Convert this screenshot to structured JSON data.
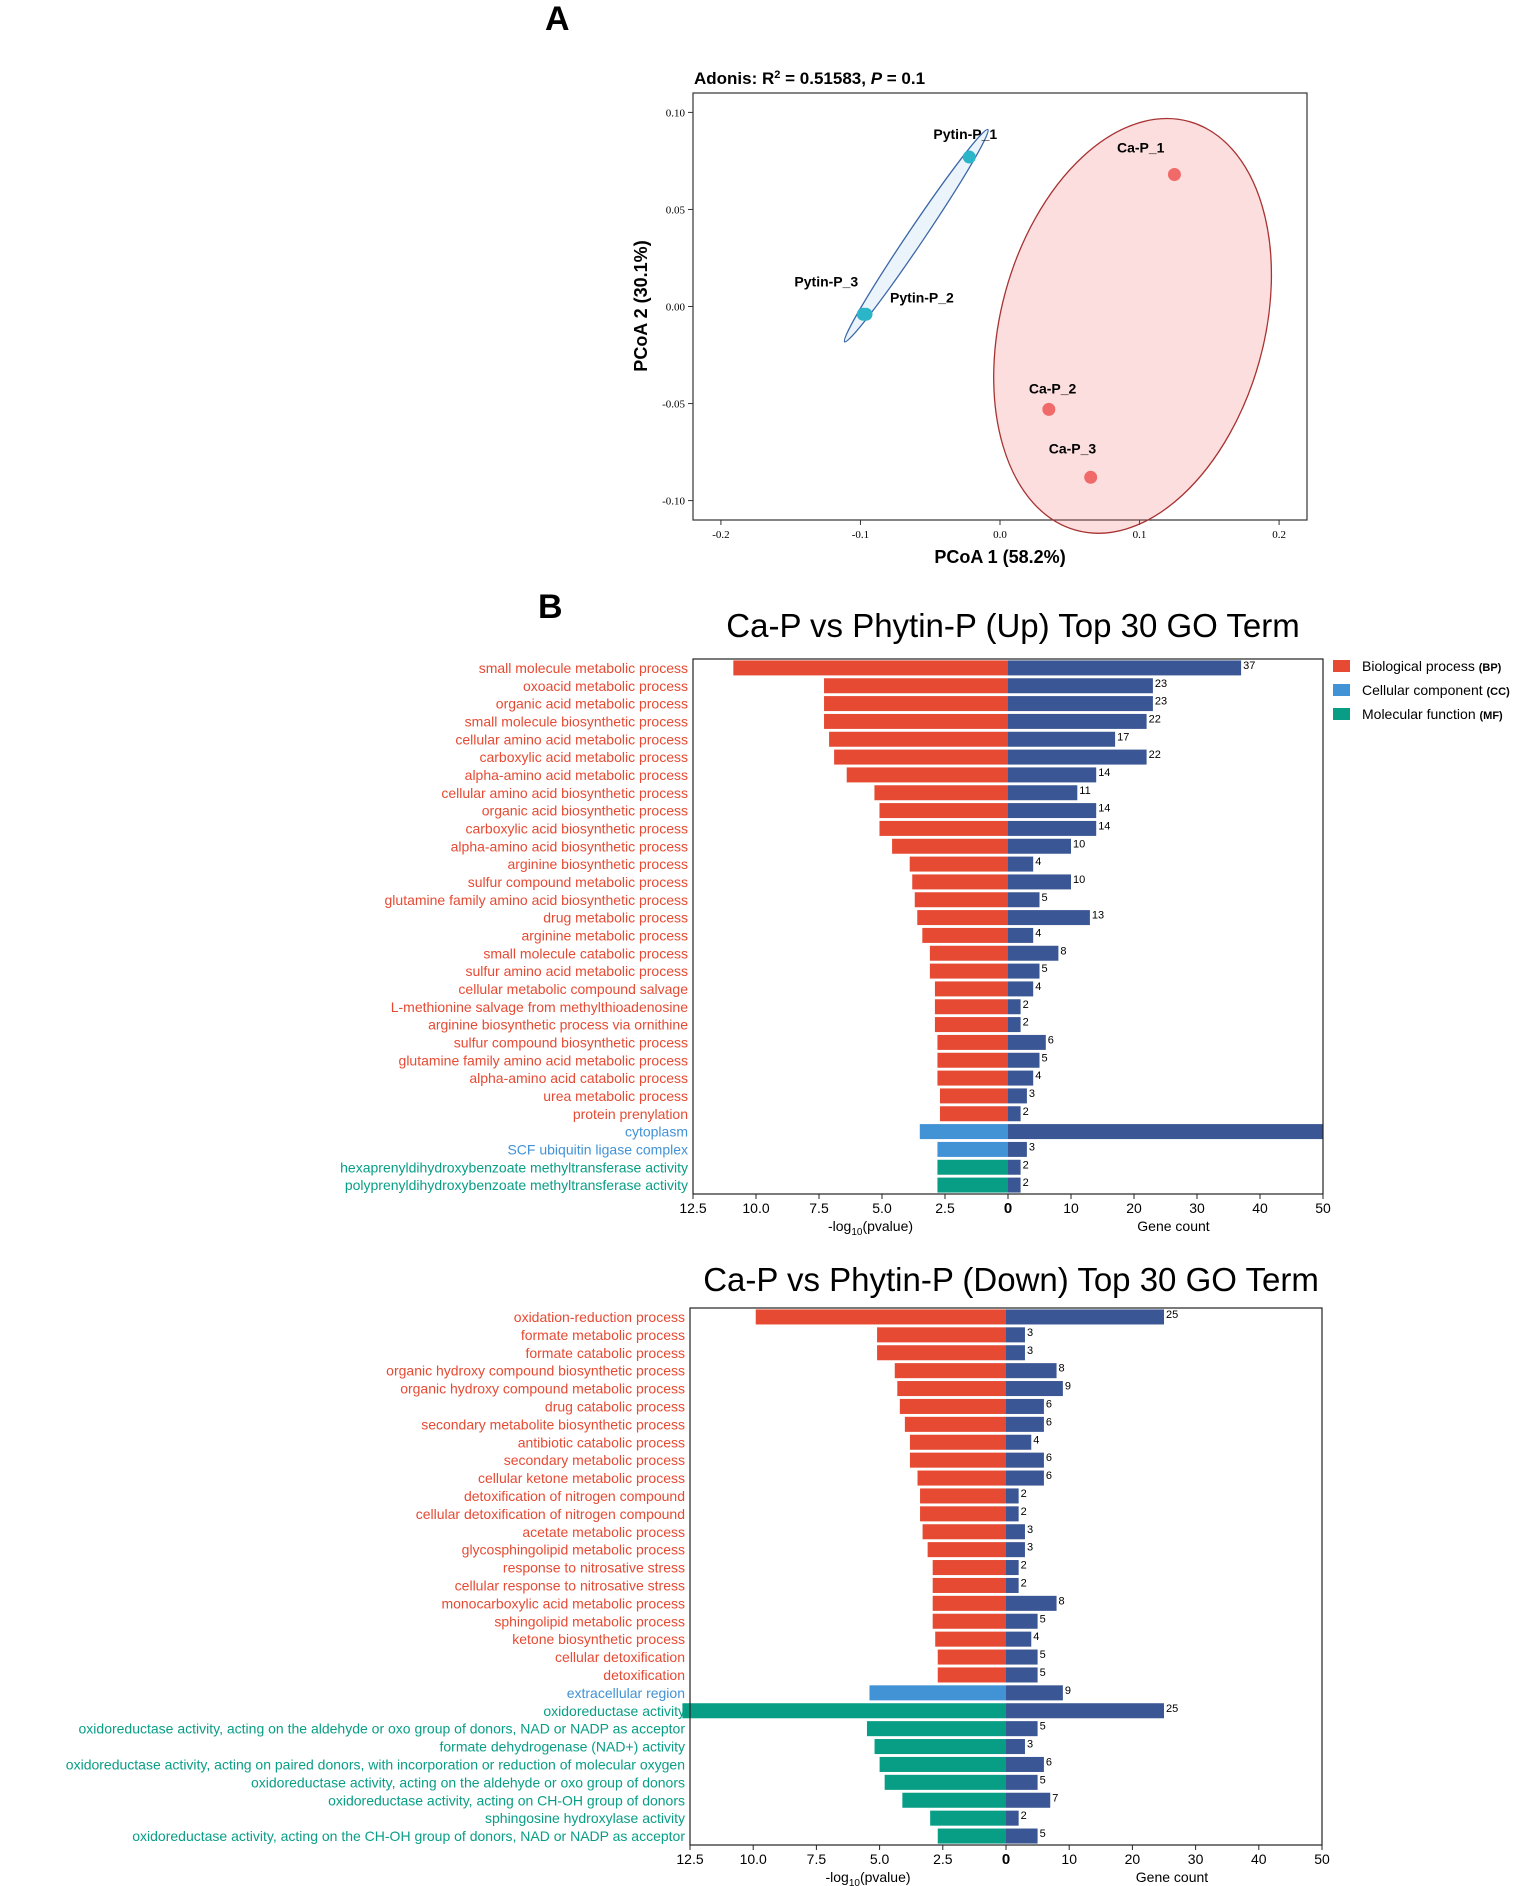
{
  "panel_a": {
    "panel_letter": "A",
    "chart_data": {
      "type": "scatter",
      "title_prefix": "Adonis: R",
      "title_sup": "2",
      "title_mid": " = 0.51583, ",
      "title_p": "P",
      "title_suffix": " = 0.1",
      "xlabel": "PCoA 1 (58.2%)",
      "ylabel": "PCoA 2 (30.1%)",
      "xlim": [
        -0.22,
        0.22
      ],
      "ylim": [
        -0.11,
        0.11
      ],
      "xticks": [
        -0.2,
        -0.1,
        0.0,
        0.1,
        0.2
      ],
      "xtick_labels": [
        "-0.2",
        "-0.1",
        "0.0",
        "0.1",
        "0.2"
      ],
      "yticks": [
        0.1,
        0.05,
        0.0,
        -0.05,
        -0.1
      ],
      "ytick_labels": [
        "0.10",
        "0.05",
        "0.00",
        "-0.05",
        "-0.10"
      ],
      "points": [
        {
          "label": "Pytin-P_1",
          "x": -0.022,
          "y": 0.077,
          "group": "Phytin-P"
        },
        {
          "label": "Pytin-P_2",
          "x": -0.096,
          "y": -0.004,
          "group": "Phytin-P"
        },
        {
          "label": "Pytin-P_3",
          "x": -0.098,
          "y": -0.004,
          "group": "Phytin-P"
        },
        {
          "label": "Ca-P_1",
          "x": 0.125,
          "y": 0.068,
          "group": "Ca-P"
        },
        {
          "label": "Ca-P_2",
          "x": 0.035,
          "y": -0.053,
          "group": "Ca-P"
        },
        {
          "label": "Ca-P_3",
          "x": 0.065,
          "y": -0.088,
          "group": "Ca-P"
        }
      ],
      "group_colors": {
        "Phytin-P": "#2bb5c9",
        "Ca-P": "#f06a6a"
      },
      "ellipse_colors": {
        "Phytin-P": "#3a66a8",
        "Ca-P": "#a83232"
      }
    }
  },
  "panel_b": {
    "panel_letter": "B",
    "legend": [
      {
        "label": "Biological process",
        "abbr": "(BP)",
        "color": "#e64a33"
      },
      {
        "label": "Cellular component",
        "abbr": "(CC)",
        "color": "#4292d6"
      },
      {
        "label": "Molecular function",
        "abbr": "(MF)",
        "color": "#089e86"
      }
    ],
    "gene_bar_color": "#3b5694",
    "category_colors": {
      "BP": "#e64a33",
      "CC": "#4292d6",
      "MF": "#089e86"
    },
    "chart_data": [
      {
        "type": "bar",
        "title": "Ca-P vs Phytin-P (Up) Top 30 GO Term",
        "left_xlabel_prefix": "-log",
        "left_xlabel_sub": "10",
        "left_xlabel_suffix": "(pvalue)",
        "right_xlabel": "Gene count",
        "left_ticks": [
          12.5,
          10.0,
          7.5,
          5.0,
          2.5
        ],
        "left_tick_labels": [
          "12.5",
          "10.0",
          "7.5",
          "5.0",
          "2.5"
        ],
        "zero_label": "0",
        "right_ticks": [
          10,
          20,
          30,
          40,
          50
        ],
        "right_tick_labels": [
          "10",
          "20",
          "30",
          "40",
          "50"
        ],
        "left_max": 12.5,
        "right_max": 50,
        "terms": [
          {
            "name": "small molecule metabolic process",
            "cat": "BP",
            "logp": 10.9,
            "count": 37
          },
          {
            "name": "oxoacid metabolic process",
            "cat": "BP",
            "logp": 7.3,
            "count": 23
          },
          {
            "name": "organic acid metabolic process",
            "cat": "BP",
            "logp": 7.3,
            "count": 23
          },
          {
            "name": "small molecule biosynthetic process",
            "cat": "BP",
            "logp": 7.3,
            "count": 22
          },
          {
            "name": "cellular amino acid metabolic process",
            "cat": "BP",
            "logp": 7.1,
            "count": 17
          },
          {
            "name": "carboxylic acid metabolic process",
            "cat": "BP",
            "logp": 6.9,
            "count": 22
          },
          {
            "name": "alpha-amino acid metabolic process",
            "cat": "BP",
            "logp": 6.4,
            "count": 14
          },
          {
            "name": "cellular amino acid biosynthetic process",
            "cat": "BP",
            "logp": 5.3,
            "count": 11
          },
          {
            "name": "organic acid biosynthetic process",
            "cat": "BP",
            "logp": 5.1,
            "count": 14
          },
          {
            "name": "carboxylic acid biosynthetic process",
            "cat": "BP",
            "logp": 5.1,
            "count": 14
          },
          {
            "name": "alpha-amino acid biosynthetic process",
            "cat": "BP",
            "logp": 4.6,
            "count": 10
          },
          {
            "name": "arginine biosynthetic process",
            "cat": "BP",
            "logp": 3.9,
            "count": 4
          },
          {
            "name": "sulfur compound metabolic process",
            "cat": "BP",
            "logp": 3.8,
            "count": 10
          },
          {
            "name": "glutamine family amino acid biosynthetic process",
            "cat": "BP",
            "logp": 3.7,
            "count": 5
          },
          {
            "name": "drug metabolic process",
            "cat": "BP",
            "logp": 3.6,
            "count": 13
          },
          {
            "name": "arginine metabolic process",
            "cat": "BP",
            "logp": 3.4,
            "count": 4
          },
          {
            "name": "small molecule catabolic process",
            "cat": "BP",
            "logp": 3.1,
            "count": 8
          },
          {
            "name": "sulfur amino acid metabolic process",
            "cat": "BP",
            "logp": 3.1,
            "count": 5
          },
          {
            "name": "cellular metabolic compound salvage",
            "cat": "BP",
            "logp": 2.9,
            "count": 4
          },
          {
            "name": "L-methionine salvage from methylthioadenosine",
            "cat": "BP",
            "logp": 2.9,
            "count": 2
          },
          {
            "name": "arginine biosynthetic process via ornithine",
            "cat": "BP",
            "logp": 2.9,
            "count": 2
          },
          {
            "name": "sulfur compound biosynthetic process",
            "cat": "BP",
            "logp": 2.8,
            "count": 6
          },
          {
            "name": "glutamine family amino acid metabolic process",
            "cat": "BP",
            "logp": 2.8,
            "count": 5
          },
          {
            "name": "alpha-amino acid catabolic process",
            "cat": "BP",
            "logp": 2.8,
            "count": 4
          },
          {
            "name": "urea metabolic process",
            "cat": "BP",
            "logp": 2.7,
            "count": 3
          },
          {
            "name": "protein prenylation",
            "cat": "BP",
            "logp": 2.7,
            "count": 2
          },
          {
            "name": "cytoplasm",
            "cat": "CC",
            "logp": 3.5,
            "count": 50,
            "hide_count": true
          },
          {
            "name": "SCF ubiquitin ligase complex",
            "cat": "CC",
            "logp": 2.8,
            "count": 3
          },
          {
            "name": "hexaprenyldihydroxybenzoate methyltransferase activity",
            "cat": "MF",
            "logp": 2.8,
            "count": 2
          },
          {
            "name": "polyprenyldihydroxybenzoate methyltransferase activity",
            "cat": "MF",
            "logp": 2.8,
            "count": 2
          }
        ]
      },
      {
        "type": "bar",
        "title": "Ca-P vs Phytin-P (Down) Top 30 GO Term",
        "left_xlabel_prefix": "-log",
        "left_xlabel_sub": "10",
        "left_xlabel_suffix": "(pvalue)",
        "right_xlabel": "Gene count",
        "left_ticks": [
          12.5,
          10.0,
          7.5,
          5.0,
          2.5
        ],
        "left_tick_labels": [
          "12.5",
          "10.0",
          "7.5",
          "5.0",
          "2.5"
        ],
        "zero_label": "0",
        "right_ticks": [
          10,
          20,
          30,
          40,
          50
        ],
        "right_tick_labels": [
          "10",
          "20",
          "30",
          "40",
          "50"
        ],
        "left_max": 12.5,
        "right_max": 50,
        "terms": [
          {
            "name": "oxidation-reduction process",
            "cat": "BP",
            "logp": 9.9,
            "count": 25
          },
          {
            "name": "formate metabolic process",
            "cat": "BP",
            "logp": 5.1,
            "count": 3
          },
          {
            "name": "formate catabolic process",
            "cat": "BP",
            "logp": 5.1,
            "count": 3
          },
          {
            "name": "organic hydroxy compound biosynthetic process",
            "cat": "BP",
            "logp": 4.4,
            "count": 8
          },
          {
            "name": "organic hydroxy compound metabolic process",
            "cat": "BP",
            "logp": 4.3,
            "count": 9
          },
          {
            "name": "drug catabolic process",
            "cat": "BP",
            "logp": 4.2,
            "count": 6
          },
          {
            "name": "secondary metabolite biosynthetic process",
            "cat": "BP",
            "logp": 4.0,
            "count": 6
          },
          {
            "name": "antibiotic catabolic process",
            "cat": "BP",
            "logp": 3.8,
            "count": 4
          },
          {
            "name": "secondary metabolic process",
            "cat": "BP",
            "logp": 3.8,
            "count": 6
          },
          {
            "name": "cellular ketone metabolic process",
            "cat": "BP",
            "logp": 3.5,
            "count": 6
          },
          {
            "name": "detoxification of nitrogen compound",
            "cat": "BP",
            "logp": 3.4,
            "count": 2
          },
          {
            "name": "cellular detoxification of nitrogen compound",
            "cat": "BP",
            "logp": 3.4,
            "count": 2
          },
          {
            "name": "acetate metabolic process",
            "cat": "BP",
            "logp": 3.3,
            "count": 3
          },
          {
            "name": "glycosphingolipid metabolic process",
            "cat": "BP",
            "logp": 3.1,
            "count": 3
          },
          {
            "name": "response to nitrosative stress",
            "cat": "BP",
            "logp": 2.9,
            "count": 2
          },
          {
            "name": "cellular response to nitrosative stress",
            "cat": "BP",
            "logp": 2.9,
            "count": 2
          },
          {
            "name": "monocarboxylic acid metabolic process",
            "cat": "BP",
            "logp": 2.9,
            "count": 8
          },
          {
            "name": "sphingolipid metabolic process",
            "cat": "BP",
            "logp": 2.9,
            "count": 5
          },
          {
            "name": "ketone biosynthetic process",
            "cat": "BP",
            "logp": 2.8,
            "count": 4
          },
          {
            "name": "cellular detoxification",
            "cat": "BP",
            "logp": 2.7,
            "count": 5
          },
          {
            "name": "detoxification",
            "cat": "BP",
            "logp": 2.7,
            "count": 5
          },
          {
            "name": "extracellular region",
            "cat": "CC",
            "logp": 5.4,
            "count": 9
          },
          {
            "name": "oxidoreductase activity",
            "cat": "MF",
            "logp": 12.8,
            "count": 25
          },
          {
            "name": "oxidoreductase activity, acting on the aldehyde or oxo group of donors, NAD or NADP as acceptor",
            "cat": "MF",
            "logp": 5.5,
            "count": 5
          },
          {
            "name": "formate dehydrogenase (NAD+) activity",
            "cat": "MF",
            "logp": 5.2,
            "count": 3
          },
          {
            "name": "oxidoreductase activity, acting on paired donors, with incorporation or reduction of molecular oxygen",
            "cat": "MF",
            "logp": 5.0,
            "count": 6
          },
          {
            "name": "oxidoreductase activity, acting on the aldehyde or oxo group of donors",
            "cat": "MF",
            "logp": 4.8,
            "count": 5
          },
          {
            "name": "oxidoreductase activity, acting on CH-OH group of donors",
            "cat": "MF",
            "logp": 4.1,
            "count": 7
          },
          {
            "name": "sphingosine hydroxylase activity",
            "cat": "MF",
            "logp": 3.0,
            "count": 2
          },
          {
            "name": "oxidoreductase activity, acting on the CH-OH group of donors, NAD or NADP as acceptor",
            "cat": "MF",
            "logp": 2.7,
            "count": 5
          }
        ]
      }
    ]
  }
}
